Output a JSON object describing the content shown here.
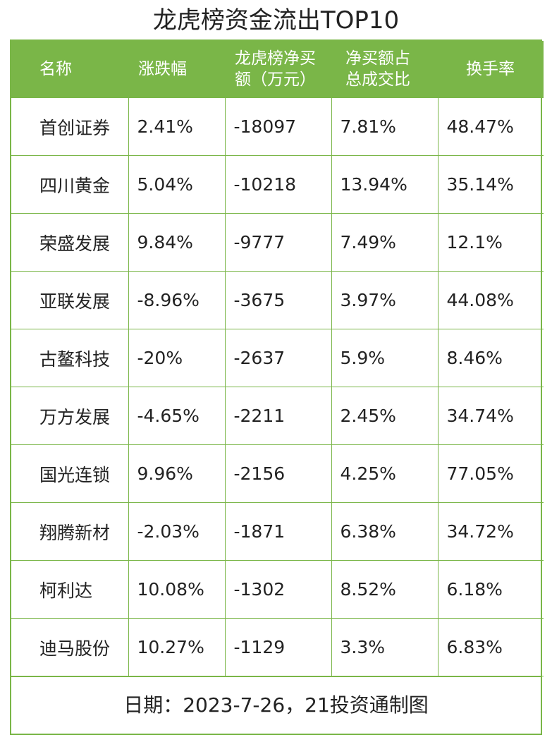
{
  "title": "龙虎榜资金流出TOP10",
  "table": {
    "header": [
      "名称",
      "涨跌幅",
      "龙虎榜净买额（万元）",
      "净买额占总成交比",
      "换手率"
    ],
    "rows": [
      [
        "首创证券",
        "2.41%",
        "-18097",
        "7.81%",
        "48.47%"
      ],
      [
        "四川黄金",
        "5.04%",
        "-10218",
        "13.94%",
        "35.14%"
      ],
      [
        "荣盛发展",
        "9.84%",
        "-9777",
        "7.49%",
        "12.1%"
      ],
      [
        "亚联发展",
        "-8.96%",
        "-3675",
        "3.97%",
        "44.08%"
      ],
      [
        "古鳌科技",
        "-20%",
        "-2637",
        "5.9%",
        "8.46%"
      ],
      [
        "万方发展",
        "-4.65%",
        "-2211",
        "2.45%",
        "34.74%"
      ],
      [
        "国光连锁",
        "9.96%",
        "-2156",
        "4.25%",
        "77.05%"
      ],
      [
        "翔腾新材",
        "-2.03%",
        "-1871",
        "6.38%",
        "34.72%"
      ],
      [
        "柯利达",
        "10.08%",
        "-1302",
        "8.52%",
        "6.18%"
      ],
      [
        "迪马股份",
        "10.27%",
        "-1129",
        "3.3%",
        "6.83%"
      ]
    ]
  },
  "footer": "日期：2023-7-26，21投资通制图"
}
